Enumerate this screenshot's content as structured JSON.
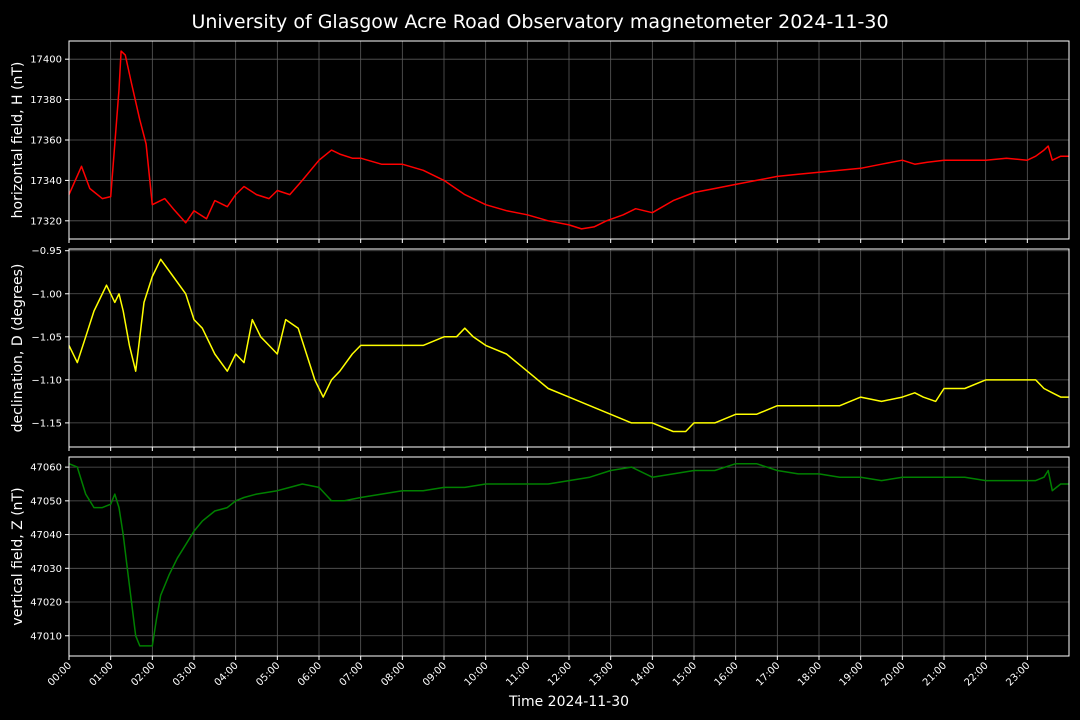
{
  "chart_data": {
    "title": "University of Glasgow Acre Road Observatory magnetometer 2024-11-30",
    "xlabel": "Time 2024-11-30",
    "x_unit": "hours",
    "xlim": [
      0,
      24
    ],
    "x_tick_values": [
      0,
      1,
      2,
      3,
      4,
      5,
      6,
      7,
      8,
      9,
      10,
      11,
      12,
      13,
      14,
      15,
      16,
      17,
      18,
      19,
      20,
      21,
      22,
      23
    ],
    "x_tick_labels": [
      "00:00",
      "01:00",
      "02:00",
      "03:00",
      "04:00",
      "05:00",
      "06:00",
      "07:00",
      "08:00",
      "09:00",
      "10:00",
      "11:00",
      "12:00",
      "13:00",
      "14:00",
      "15:00",
      "16:00",
      "17:00",
      "18:00",
      "19:00",
      "20:00",
      "21:00",
      "22:00",
      "23:00"
    ],
    "grid": true,
    "panels": [
      {
        "type": "line",
        "ylabel": "horizontal field, H (nT)",
        "color": "#ff0000",
        "ylim": [
          17311,
          17409
        ],
        "yticks": [
          17320,
          17340,
          17360,
          17380,
          17400
        ],
        "ytick_labels": [
          "17320",
          "17340",
          "17360",
          "17380",
          "17400"
        ],
        "x": [
          0,
          0.3,
          0.5,
          0.8,
          1.0,
          1.1,
          1.2,
          1.25,
          1.35,
          1.5,
          1.7,
          1.85,
          2.0,
          2.3,
          2.5,
          2.8,
          3.0,
          3.3,
          3.5,
          3.8,
          4.0,
          4.2,
          4.5,
          4.8,
          5.0,
          5.3,
          5.6,
          6.0,
          6.3,
          6.5,
          6.8,
          7.0,
          7.5,
          8.0,
          8.5,
          9.0,
          9.5,
          10.0,
          10.5,
          11.0,
          11.5,
          12.0,
          12.3,
          12.6,
          12.9,
          13.3,
          13.6,
          14.0,
          14.5,
          15.0,
          15.5,
          16.0,
          16.5,
          17.0,
          17.5,
          18.0,
          18.5,
          19.0,
          19.5,
          20.0,
          20.3,
          20.6,
          21.0,
          21.5,
          22.0,
          22.5,
          23.0,
          23.2,
          23.4,
          23.5,
          23.6,
          23.8,
          24.0
        ],
        "y": [
          17333,
          17347,
          17336,
          17331,
          17332,
          17358,
          17385,
          17404,
          17402,
          17388,
          17370,
          17358,
          17328,
          17331,
          17326,
          17319,
          17325,
          17321,
          17330,
          17327,
          17333,
          17337,
          17333,
          17331,
          17335,
          17333,
          17340,
          17350,
          17355,
          17353,
          17351,
          17351,
          17348,
          17348,
          17345,
          17340,
          17333,
          17328,
          17325,
          17323,
          17320,
          17318,
          17316,
          17317,
          17320,
          17323,
          17326,
          17324,
          17330,
          17334,
          17336,
          17338,
          17340,
          17342,
          17343,
          17344,
          17345,
          17346,
          17348,
          17350,
          17348,
          17349,
          17350,
          17350,
          17350,
          17351,
          17350,
          17352,
          17355,
          17357,
          17350,
          17352,
          17352
        ]
      },
      {
        "type": "line",
        "ylabel": "declination, D (degrees)",
        "color": "#ffff00",
        "ylim": [
          -1.178,
          -0.948
        ],
        "yticks": [
          -1.15,
          -1.1,
          -1.05,
          -1.0,
          -0.95
        ],
        "ytick_labels": [
          "−1.15",
          "−1.10",
          "−1.05",
          "−1.00",
          "−0.95"
        ],
        "x": [
          0,
          0.2,
          0.4,
          0.6,
          0.9,
          1.0,
          1.1,
          1.2,
          1.3,
          1.45,
          1.6,
          1.8,
          2.0,
          2.1,
          2.2,
          2.5,
          2.8,
          3.0,
          3.2,
          3.5,
          3.8,
          4.0,
          4.2,
          4.4,
          4.6,
          4.8,
          5.0,
          5.2,
          5.5,
          5.7,
          5.9,
          6.1,
          6.3,
          6.5,
          6.8,
          7.0,
          7.5,
          8.0,
          8.5,
          9.0,
          9.3,
          9.5,
          9.7,
          10.0,
          10.5,
          11.0,
          11.5,
          12.0,
          12.5,
          13.0,
          13.5,
          14.0,
          14.5,
          14.8,
          15.0,
          15.5,
          16.0,
          16.5,
          17.0,
          17.5,
          18.0,
          18.5,
          19.0,
          19.5,
          20.0,
          20.3,
          20.5,
          20.8,
          21.0,
          21.5,
          22.0,
          22.5,
          23.0,
          23.2,
          23.4,
          23.6,
          23.8,
          24.0
        ],
        "y": [
          -1.06,
          -1.08,
          -1.05,
          -1.02,
          -0.99,
          -1.0,
          -1.01,
          -1.0,
          -1.02,
          -1.06,
          -1.09,
          -1.01,
          -0.98,
          -0.97,
          -0.96,
          -0.98,
          -1.0,
          -1.03,
          -1.04,
          -1.07,
          -1.09,
          -1.07,
          -1.08,
          -1.03,
          -1.05,
          -1.06,
          -1.07,
          -1.03,
          -1.04,
          -1.07,
          -1.1,
          -1.12,
          -1.1,
          -1.09,
          -1.07,
          -1.06,
          -1.06,
          -1.06,
          -1.06,
          -1.05,
          -1.05,
          -1.04,
          -1.05,
          -1.06,
          -1.07,
          -1.09,
          -1.11,
          -1.12,
          -1.13,
          -1.14,
          -1.15,
          -1.15,
          -1.16,
          -1.16,
          -1.15,
          -1.15,
          -1.14,
          -1.14,
          -1.13,
          -1.13,
          -1.13,
          -1.13,
          -1.12,
          -1.125,
          -1.12,
          -1.115,
          -1.12,
          -1.125,
          -1.11,
          -1.11,
          -1.1,
          -1.1,
          -1.1,
          -1.1,
          -1.11,
          -1.115,
          -1.12,
          -1.12
        ]
      },
      {
        "type": "line",
        "ylabel": "vertical field, Z (nT)",
        "color": "#008000",
        "ylim": [
          47004,
          47063
        ],
        "yticks": [
          47010,
          47020,
          47030,
          47040,
          47050,
          47060
        ],
        "ytick_labels": [
          "47010",
          "47020",
          "47030",
          "47040",
          "47050",
          "47060"
        ],
        "x": [
          0,
          0.2,
          0.4,
          0.6,
          0.8,
          1.0,
          1.1,
          1.2,
          1.3,
          1.4,
          1.5,
          1.6,
          1.7,
          1.8,
          2.0,
          2.1,
          2.2,
          2.4,
          2.6,
          2.8,
          3.0,
          3.2,
          3.5,
          3.8,
          4.0,
          4.2,
          4.5,
          5.0,
          5.3,
          5.6,
          6.0,
          6.3,
          6.6,
          7.0,
          7.5,
          8.0,
          8.5,
          9.0,
          9.5,
          10.0,
          10.5,
          11.0,
          11.5,
          12.0,
          12.5,
          13.0,
          13.5,
          14.0,
          14.5,
          15.0,
          15.5,
          16.0,
          16.5,
          17.0,
          17.5,
          18.0,
          18.5,
          19.0,
          19.5,
          20.0,
          20.5,
          21.0,
          21.5,
          22.0,
          22.5,
          23.0,
          23.2,
          23.4,
          23.5,
          23.6,
          23.8,
          24.0
        ],
        "y": [
          47061,
          47060,
          47052,
          47048,
          47048,
          47049,
          47052,
          47048,
          47040,
          47030,
          47020,
          47010,
          47007,
          47007,
          47007,
          47015,
          47022,
          47028,
          47033,
          47037,
          47041,
          47044,
          47047,
          47048,
          47050,
          47051,
          47052,
          47053,
          47054,
          47055,
          47054,
          47050,
          47050,
          47051,
          47052,
          47053,
          47053,
          47054,
          47054,
          47055,
          47055,
          47055,
          47055,
          47056,
          47057,
          47059,
          47060,
          47057,
          47058,
          47059,
          47059,
          47061,
          47061,
          47059,
          47058,
          47058,
          47057,
          47057,
          47056,
          47057,
          47057,
          47057,
          47057,
          47056,
          47056,
          47056,
          47056,
          47057,
          47059,
          47053,
          47055,
          47055
        ]
      }
    ]
  }
}
